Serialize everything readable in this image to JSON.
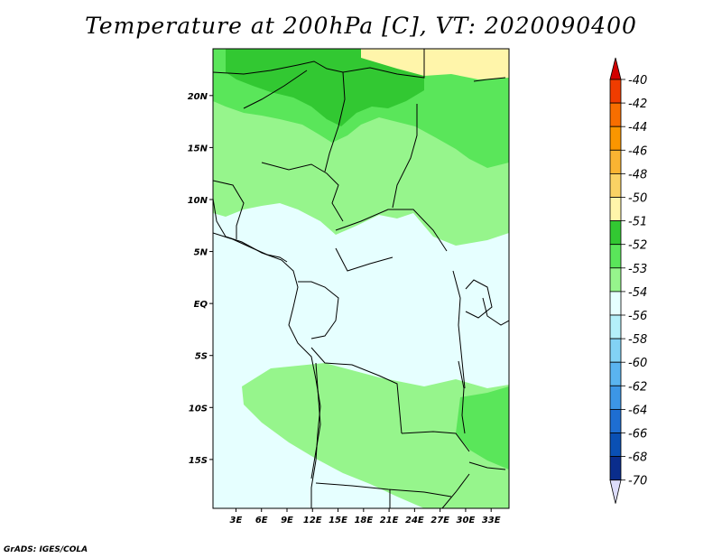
{
  "title": "Temperature at 200hPa [C], VT: 2020090400",
  "credit": "GrADS: IGES/COLA",
  "map": {
    "lat_labels": [
      "20N",
      "15N",
      "10N",
      "5N",
      "EQ",
      "5S",
      "10S",
      "15S"
    ],
    "lat_values": [
      20,
      15,
      10,
      5,
      0,
      -5,
      -10,
      -15
    ],
    "lon_labels": [
      "3E",
      "6E",
      "9E",
      "12E",
      "15E",
      "18E",
      "21E",
      "24E",
      "27E",
      "30E",
      "33E"
    ],
    "lon_values": [
      3,
      6,
      9,
      12,
      15,
      18,
      21,
      24,
      27,
      30,
      33
    ],
    "lat_range": [
      -19.7,
      24.5
    ],
    "lon_range": [
      0.3,
      35.1
    ]
  },
  "colorbar": {
    "labels": [
      "-40",
      "-42",
      "-44",
      "-46",
      "-48",
      "-50",
      "-51",
      "-52",
      "-53",
      "-54",
      "-56",
      "-58",
      "-60",
      "-62",
      "-64",
      "-66",
      "-68",
      "-70"
    ],
    "colors": [
      "#f03c00",
      "#f86e00",
      "#fa9600",
      "#fab432",
      "#fad264",
      "#fff5aa",
      "#32c832",
      "#5ae65a",
      "#96f58c",
      "#e6ffff",
      "#b4f0fa",
      "#82d2f5",
      "#5ab4f0",
      "#3c96e6",
      "#1e6ed2",
      "#0a50b4",
      "#0a2d8c",
      "#0a0a6e"
    ],
    "top_color": "#d20000",
    "bottom_color": "#dcdcfa"
  }
}
